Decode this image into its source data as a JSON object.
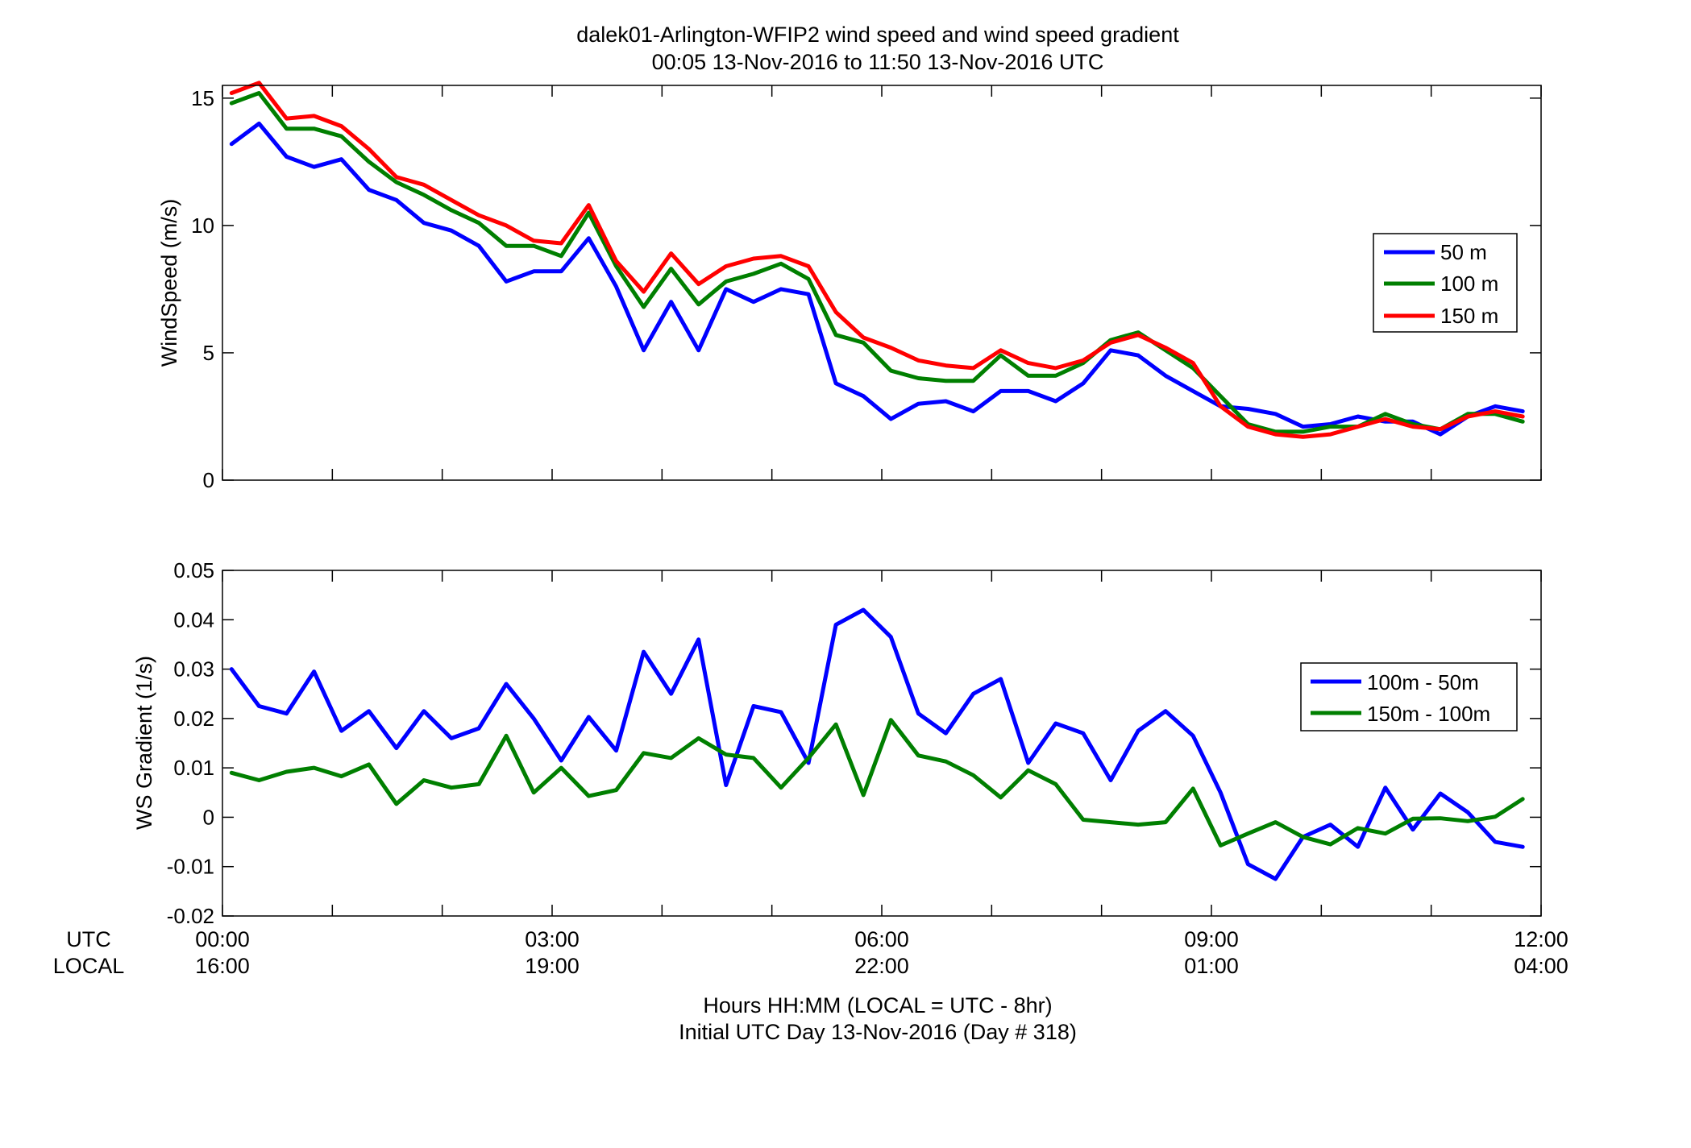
{
  "figure": {
    "title_line1": "dalek01-Arlington-WFIP2  wind speed and wind speed gradient",
    "title_line2": "00:05 13-Nov-2016 to 11:50 13-Nov-2016  UTC",
    "xlabel_line1": "Hours HH:MM  (LOCAL = UTC - 8hr)",
    "xlabel_line2": "Initial UTC Day 13-Nov-2016 (Day # 318)",
    "utc_row_label": "UTC",
    "local_row_label": "LOCAL",
    "utc_ticks": [
      "00:00",
      "03:00",
      "06:00",
      "09:00",
      "12:00"
    ],
    "local_ticks": [
      "16:00",
      "19:00",
      "22:00",
      "01:00",
      "04:00"
    ]
  },
  "chart_data": [
    {
      "type": "line",
      "ylabel": "WindSpeed (m/s)",
      "xlim_hours": [
        0,
        12
      ],
      "ylim": [
        0,
        15.5
      ],
      "yticks": [
        0,
        5,
        10,
        15
      ],
      "ytick_labels": [
        "0",
        "5",
        "10",
        "15"
      ],
      "grid": false,
      "legend_position": "right",
      "x_hours": [
        0.083,
        0.333,
        0.583,
        0.833,
        1.083,
        1.333,
        1.583,
        1.833,
        2.083,
        2.333,
        2.583,
        2.833,
        3.083,
        3.333,
        3.583,
        3.833,
        4.083,
        4.333,
        4.583,
        4.833,
        5.083,
        5.333,
        5.583,
        5.833,
        6.083,
        6.333,
        6.583,
        6.833,
        7.083,
        7.333,
        7.583,
        7.833,
        8.083,
        8.333,
        8.583,
        8.833,
        9.083,
        9.333,
        9.583,
        9.833,
        10.083,
        10.333,
        10.583,
        10.833,
        11.083,
        11.333,
        11.583,
        11.833
      ],
      "series": [
        {
          "name": "50 m",
          "color": "#0000ff",
          "values": [
            13.2,
            14.0,
            12.7,
            12.3,
            12.6,
            11.4,
            11.0,
            10.1,
            9.8,
            9.2,
            7.8,
            8.2,
            8.2,
            9.5,
            7.6,
            5.1,
            7.0,
            5.1,
            7.5,
            7.0,
            7.5,
            7.3,
            3.8,
            3.3,
            2.4,
            3.0,
            3.1,
            2.7,
            3.5,
            3.5,
            3.1,
            3.8,
            5.1,
            4.9,
            4.1,
            3.5,
            2.9,
            2.8,
            2.6,
            2.1,
            2.2,
            2.5,
            2.3,
            2.3,
            1.8,
            2.5,
            2.9,
            2.7
          ]
        },
        {
          "name": "100 m",
          "color": "#007f00",
          "values": [
            14.8,
            15.2,
            13.8,
            13.8,
            13.5,
            12.5,
            11.7,
            11.2,
            10.6,
            10.1,
            9.2,
            9.2,
            8.8,
            10.5,
            8.4,
            6.8,
            8.3,
            6.9,
            7.8,
            8.1,
            8.5,
            7.9,
            5.7,
            5.4,
            4.3,
            4.0,
            3.9,
            3.9,
            4.9,
            4.1,
            4.1,
            4.6,
            5.5,
            5.8,
            5.1,
            4.4,
            3.3,
            2.2,
            1.9,
            1.9,
            2.1,
            2.1,
            2.6,
            2.2,
            2.0,
            2.6,
            2.6,
            2.3
          ]
        },
        {
          "name": "150 m",
          "color": "#ff0000",
          "values": [
            15.2,
            15.6,
            14.2,
            14.3,
            13.9,
            13.0,
            11.9,
            11.6,
            11.0,
            10.4,
            10.0,
            9.4,
            9.3,
            10.8,
            8.6,
            7.4,
            8.9,
            7.7,
            8.4,
            8.7,
            8.8,
            8.4,
            6.6,
            5.6,
            5.2,
            4.7,
            4.5,
            4.4,
            5.1,
            4.6,
            4.4,
            4.7,
            5.4,
            5.7,
            5.2,
            4.6,
            2.9,
            2.1,
            1.8,
            1.7,
            1.8,
            2.1,
            2.4,
            2.1,
            2.0,
            2.5,
            2.7,
            2.5
          ]
        }
      ]
    },
    {
      "type": "line",
      "ylabel": "WS Gradient (1/s)",
      "xlim_hours": [
        0,
        12
      ],
      "ylim": [
        -0.02,
        0.05
      ],
      "yticks": [
        -0.02,
        -0.01,
        0,
        0.01,
        0.02,
        0.03,
        0.04,
        0.05
      ],
      "ytick_labels": [
        "-0.02",
        "-0.01",
        "0",
        "0.01",
        "0.02",
        "0.03",
        "0.04",
        "0.05"
      ],
      "grid": false,
      "legend_position": "right",
      "x_hours": [
        0.083,
        0.333,
        0.583,
        0.833,
        1.083,
        1.333,
        1.583,
        1.833,
        2.083,
        2.333,
        2.583,
        2.833,
        3.083,
        3.333,
        3.583,
        3.833,
        4.083,
        4.333,
        4.583,
        4.833,
        5.083,
        5.333,
        5.583,
        5.833,
        6.083,
        6.333,
        6.583,
        6.833,
        7.083,
        7.333,
        7.583,
        7.833,
        8.083,
        8.333,
        8.583,
        8.833,
        9.083,
        9.333,
        9.583,
        9.833,
        10.083,
        10.333,
        10.583,
        10.833,
        11.083,
        11.333,
        11.583,
        11.833
      ],
      "series": [
        {
          "name": "100m - 50m",
          "color": "#0000ff",
          "values": [
            0.03,
            0.0225,
            0.021,
            0.0295,
            0.0175,
            0.0215,
            0.014,
            0.0215,
            0.016,
            0.018,
            0.027,
            0.02,
            0.0115,
            0.0203,
            0.0135,
            0.0335,
            0.025,
            0.036,
            0.0065,
            0.0225,
            0.0213,
            0.011,
            0.039,
            0.042,
            0.0365,
            0.021,
            0.017,
            0.025,
            0.028,
            0.011,
            0.019,
            0.017,
            0.0075,
            0.0175,
            0.0215,
            0.0165,
            0.005,
            -0.0095,
            -0.0125,
            -0.004,
            -0.0015,
            -0.006,
            0.006,
            -0.0025,
            0.0048,
            0.001,
            -0.005,
            -0.006
          ]
        },
        {
          "name": "150m - 100m",
          "color": "#007f00",
          "values": [
            0.009,
            0.0075,
            0.0092,
            0.01,
            0.0083,
            0.0107,
            0.0027,
            0.0075,
            0.006,
            0.0067,
            0.0165,
            0.005,
            0.01,
            0.0043,
            0.0055,
            0.013,
            0.012,
            0.016,
            0.0127,
            0.012,
            0.006,
            0.012,
            0.0188,
            0.0045,
            0.0197,
            0.0125,
            0.0113,
            0.0085,
            0.004,
            0.0095,
            0.0067,
            -0.0005,
            -0.001,
            -0.0015,
            -0.001,
            0.0058,
            -0.0057,
            -0.0033,
            -0.001,
            -0.004,
            -0.0055,
            -0.0022,
            -0.0033,
            -0.0003,
            -0.0002,
            -0.0008,
            0.0001,
            0.0037
          ]
        }
      ]
    }
  ]
}
